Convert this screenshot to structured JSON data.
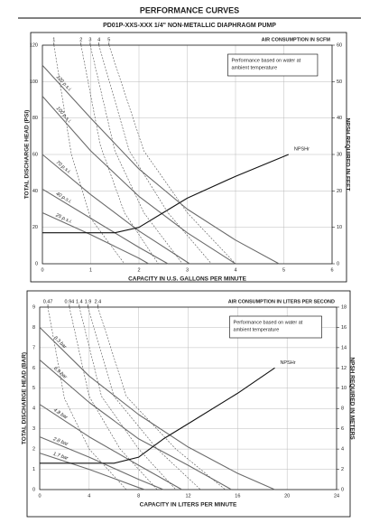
{
  "header": {
    "title": "PERFORMANCE CURVES",
    "subtitle": "PD01P-XXS-XXX 1/4\" NON-METALLIC DIAPHRAGM PUMP"
  },
  "chart_data": [
    {
      "type": "line",
      "x_label": "CAPACITY IN U.S. GALLONS PER MINUTE",
      "y_label": "TOTAL DISCHARGE HEAD (PSI)",
      "y2_label": "NPSH REQUIRED IN FEET",
      "x2_label": "AIR CONSUMPTION IN SCFM",
      "note": [
        "Performance based on water at",
        "ambient temperature"
      ],
      "xlim": [
        0,
        6
      ],
      "xticks": [
        0,
        1,
        2,
        3,
        4,
        5,
        6
      ],
      "ylim": [
        0,
        120
      ],
      "yticks": [
        0,
        20,
        40,
        60,
        80,
        100,
        120
      ],
      "y2lim": [
        0,
        60
      ],
      "y2ticks": [
        0,
        10,
        20,
        30,
        40,
        50,
        60
      ],
      "x2ticks": [
        {
          "value": 0.24,
          "label": "1"
        },
        {
          "value": 0.8,
          "label": "2"
        },
        {
          "value": 0.99,
          "label": "3"
        },
        {
          "value": 1.17,
          "label": "4"
        },
        {
          "value": 1.38,
          "label": "5"
        }
      ],
      "grid": true,
      "series": [
        {
          "name": "120 p.s.i.",
          "color": "#6b6b6b",
          "x": [
            0,
            1,
            2,
            3,
            4,
            4.9
          ],
          "values": [
            109,
            80,
            52,
            30,
            13,
            0
          ]
        },
        {
          "name": "100 p.s.i.",
          "color": "#6b6b6b",
          "x": [
            0,
            1,
            2,
            3,
            4
          ],
          "values": [
            92,
            62,
            37,
            17,
            0
          ]
        },
        {
          "name": "70 p.s.i.",
          "color": "#6b6b6b",
          "x": [
            0,
            1,
            2,
            3.05
          ],
          "values": [
            60,
            38,
            18,
            0
          ]
        },
        {
          "name": "40 p.s.i.",
          "color": "#6b6b6b",
          "x": [
            0,
            1,
            2,
            2.6
          ],
          "values": [
            41,
            25,
            9,
            0
          ]
        },
        {
          "name": "25 p.s.i.",
          "color": "#6b6b6b",
          "x": [
            0,
            1,
            2,
            2.2
          ],
          "values": [
            28,
            16,
            3,
            0
          ]
        },
        {
          "name": "NPSHr",
          "color": "#111111",
          "axis": "y2",
          "x": [
            0,
            1.5,
            2,
            2.5,
            3,
            4,
            5.1
          ],
          "values": [
            8.5,
            8.5,
            10,
            14,
            18,
            24,
            30
          ]
        },
        {
          "color": "#555555",
          "dashed": true,
          "x": [
            0.24,
            0.6,
            1.0,
            1.7
          ],
          "values": [
            120,
            60,
            25,
            0
          ]
        },
        {
          "color": "#555555",
          "dashed": true,
          "x": [
            0.8,
            1.2,
            1.7,
            2.4
          ],
          "values": [
            120,
            65,
            28,
            0
          ]
        },
        {
          "color": "#555555",
          "dashed": true,
          "x": [
            0.99,
            1.5,
            2.1,
            2.9
          ],
          "values": [
            120,
            62,
            28,
            0
          ]
        },
        {
          "color": "#555555",
          "dashed": true,
          "x": [
            1.17,
            1.8,
            2.6,
            3.5
          ],
          "values": [
            120,
            62,
            28,
            0
          ]
        },
        {
          "color": "#555555",
          "dashed": true,
          "x": [
            1.38,
            2.1,
            3.0,
            4.0
          ],
          "values": [
            120,
            62,
            28,
            0
          ]
        }
      ]
    },
    {
      "type": "line",
      "x_label": "CAPACITY IN LITERS PER MINUTE",
      "y_label": "TOTAL DISCHARGE HEAD (BAR)",
      "y2_label": "NPSH REQUIRED IN METERS",
      "x2_label": "AIR CONSUMPTION IN LITERS PER SECOND",
      "note": [
        "Performance based on water at",
        "ambient temperature"
      ],
      "xlim": [
        0,
        24
      ],
      "xticks": [
        0,
        4,
        8,
        12,
        16,
        20,
        24
      ],
      "ylim": [
        0,
        9
      ],
      "yticks": [
        0,
        1,
        2,
        3,
        4,
        5,
        6,
        7,
        8,
        9
      ],
      "y2lim": [
        0,
        18
      ],
      "y2ticks": [
        0,
        2,
        4,
        6,
        8,
        10,
        12,
        14,
        16,
        18
      ],
      "x2ticks": [
        {
          "value": 0.66,
          "label": "0.47"
        },
        {
          "value": 2.4,
          "label": "0.94"
        },
        {
          "value": 3.2,
          "label": "1.4"
        },
        {
          "value": 3.9,
          "label": "1.9"
        },
        {
          "value": 4.7,
          "label": "2.4"
        }
      ],
      "grid": true,
      "series": [
        {
          "name": "8.3 bar",
          "color": "#6b6b6b",
          "x": [
            0,
            4,
            8,
            12,
            16,
            19
          ],
          "values": [
            8.0,
            5.6,
            3.7,
            2.1,
            0.8,
            0
          ]
        },
        {
          "name": "6.9 bar",
          "color": "#6b6b6b",
          "x": [
            0,
            4,
            8,
            12,
            15.5
          ],
          "values": [
            6.4,
            4.3,
            2.5,
            1.2,
            0
          ]
        },
        {
          "name": "4.8 bar",
          "color": "#6b6b6b",
          "x": [
            0,
            4,
            8,
            11.5
          ],
          "values": [
            4.2,
            2.6,
            1.2,
            0
          ]
        },
        {
          "name": "2.8 bar",
          "color": "#6b6b6b",
          "x": [
            0,
            4,
            8,
            10
          ],
          "values": [
            2.6,
            1.6,
            0.5,
            0
          ]
        },
        {
          "name": "1.7 bar",
          "color": "#6b6b6b",
          "x": [
            0,
            4,
            8,
            8.5
          ],
          "values": [
            1.8,
            1.0,
            0.1,
            0
          ]
        },
        {
          "name": "NPSHr",
          "color": "#111111",
          "axis": "y2",
          "x": [
            0,
            6,
            8,
            10,
            12,
            16,
            19
          ],
          "values": [
            2.6,
            2.6,
            3.2,
            5,
            6.5,
            9.5,
            12
          ]
        },
        {
          "color": "#555555",
          "dashed": true,
          "x": [
            0.66,
            2,
            4,
            7
          ],
          "values": [
            9,
            4.5,
            2,
            0
          ]
        },
        {
          "color": "#555555",
          "dashed": true,
          "x": [
            2.4,
            4,
            6.5,
            9.5
          ],
          "values": [
            9,
            4.6,
            2,
            0
          ]
        },
        {
          "color": "#555555",
          "dashed": true,
          "x": [
            3.2,
            5,
            8,
            11
          ],
          "values": [
            9,
            4.6,
            2,
            0
          ]
        },
        {
          "color": "#555555",
          "dashed": true,
          "x": [
            3.9,
            6,
            9.5,
            13
          ],
          "values": [
            9,
            4.6,
            2,
            0
          ]
        },
        {
          "color": "#555555",
          "dashed": true,
          "x": [
            4.7,
            7,
            11,
            15
          ],
          "values": [
            9,
            4.6,
            2,
            0
          ]
        }
      ]
    }
  ]
}
